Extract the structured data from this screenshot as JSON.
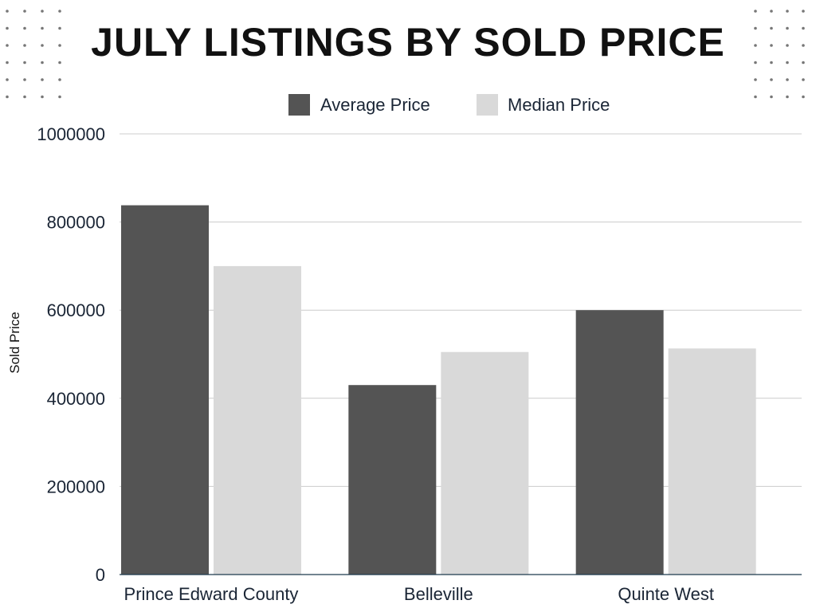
{
  "chart_data": {
    "type": "bar",
    "title": "JULY LISTINGS BY SOLD PRICE",
    "xlabel": "",
    "ylabel": "Sold Price",
    "categories": [
      "Prince Edward County",
      "Belleville",
      "Quinte West"
    ],
    "series": [
      {
        "name": "Average Price",
        "color": "#545454",
        "values": [
          838000,
          430000,
          600000
        ]
      },
      {
        "name": "Median Price",
        "color": "#d9d9d9",
        "values": [
          700000,
          505000,
          513000
        ]
      }
    ],
    "ylim": [
      0,
      1000000
    ],
    "yticks": [
      "0",
      "200000",
      "400000",
      "600000",
      "800000",
      "1000000"
    ],
    "grid": true,
    "legend_position": "top"
  },
  "colors": {
    "gridline": "#cccccc",
    "axis_line": "#1f3a4d",
    "dots": "#777777"
  }
}
